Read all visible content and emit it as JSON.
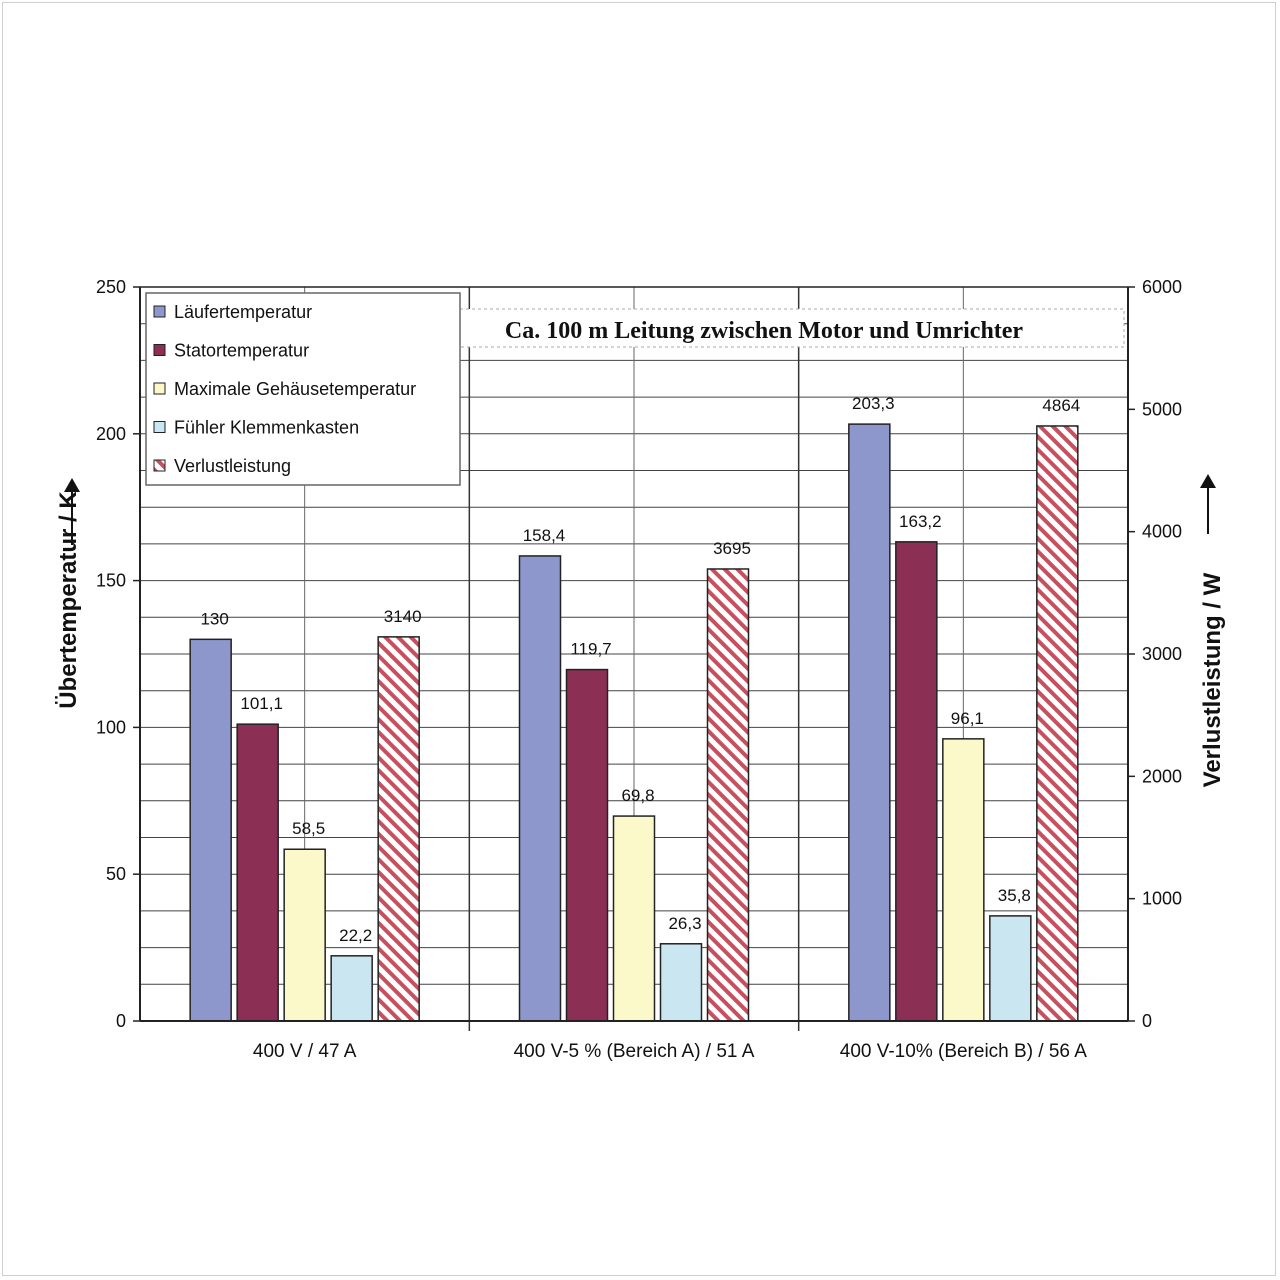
{
  "chart_data": {
    "type": "bar",
    "categories": [
      "400 V / 47 A",
      "400 V-5 % (Bereich A) / 51 A",
      "400 V-10% (Bereich B) / 56 A"
    ],
    "series": [
      {
        "name": "Läufertemperatur",
        "axis": "left",
        "values": [
          130,
          158.4,
          203.3
        ],
        "labels": [
          "130",
          "158,4",
          "203,3"
        ],
        "color": "#8d97cc",
        "pattern": "solid"
      },
      {
        "name": "Statortemperatur",
        "axis": "left",
        "values": [
          101.1,
          119.7,
          163.2
        ],
        "labels": [
          "101,1",
          "119,7",
          "163,2"
        ],
        "color": "#8c2f55",
        "pattern": "solid"
      },
      {
        "name": "Maximale Gehäusetemperatur",
        "axis": "left",
        "values": [
          58.5,
          69.8,
          96.1
        ],
        "labels": [
          "58,5",
          "69,8",
          "96,1"
        ],
        "color": "#fbf8c9",
        "pattern": "solid"
      },
      {
        "name": "Fühler Klemmenkasten",
        "axis": "left",
        "values": [
          22.2,
          26.3,
          35.8
        ],
        "labels": [
          "22,2",
          "26,3",
          "35,8"
        ],
        "color": "#c9e6f1",
        "pattern": "solid"
      },
      {
        "name": "Verlustleistung",
        "axis": "right",
        "values": [
          3140,
          3695,
          4864
        ],
        "labels": [
          "3140",
          "3695",
          "4864"
        ],
        "color": "#c8505e",
        "pattern": "hatched"
      }
    ],
    "ylabel": "Übertemperatur / K",
    "ylabel_right": "Verlustleistung / W",
    "ylim": [
      0,
      250
    ],
    "ylim_right": [
      0,
      6000
    ],
    "yticks": [
      0,
      50,
      100,
      150,
      200,
      250
    ],
    "yticks_right": [
      0,
      1000,
      2000,
      3000,
      4000,
      5000,
      6000
    ],
    "annotation": "Ca. 100 m Leitung zwischen  Motor und Umrichter",
    "grid": true,
    "legend_position": "top-left"
  }
}
